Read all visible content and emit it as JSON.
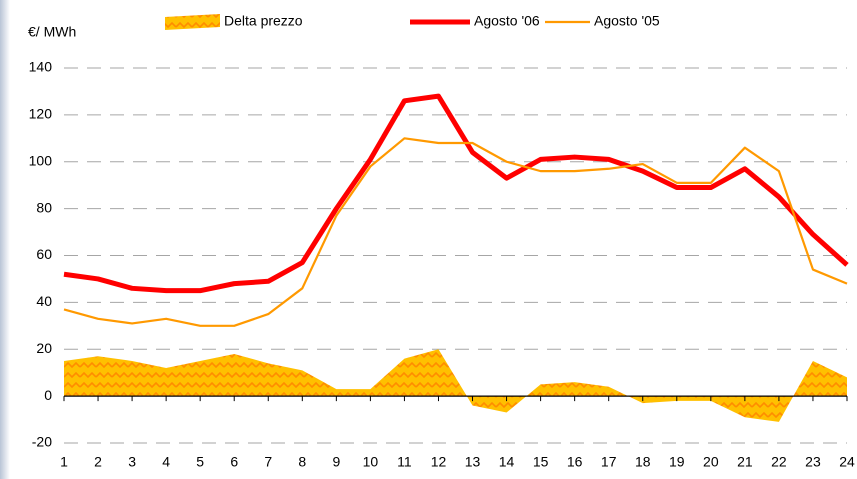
{
  "chart_data": {
    "type": "line",
    "y_label": "€/ MWh",
    "categories": [
      "1",
      "2",
      "3",
      "4",
      "5",
      "6",
      "7",
      "8",
      "9",
      "10",
      "11",
      "12",
      "13",
      "14",
      "15",
      "16",
      "17",
      "18",
      "19",
      "20",
      "21",
      "22",
      "23",
      "24"
    ],
    "series": [
      {
        "name": "Delta prezzo",
        "kind": "area",
        "color": "#ffc000",
        "hatch_color": "#ff8c00",
        "values": [
          15,
          17,
          15,
          12,
          15,
          18,
          14,
          11,
          3,
          3,
          16,
          20,
          -4,
          -7,
          5,
          6,
          4,
          -3,
          -2,
          -2,
          -9,
          -11,
          15,
          8
        ]
      },
      {
        "name": "Agosto '06",
        "kind": "line",
        "color": "#ff0000",
        "values": [
          52,
          50,
          46,
          45,
          45,
          48,
          49,
          57,
          80,
          101,
          126,
          128,
          104,
          93,
          101,
          102,
          101,
          96,
          89,
          89,
          97,
          85,
          69,
          56
        ]
      },
      {
        "name": "Agosto '05",
        "kind": "line",
        "color": "#ff9900",
        "values": [
          37,
          33,
          31,
          33,
          30,
          30,
          35,
          46,
          77,
          98,
          110,
          108,
          108,
          100,
          96,
          96,
          97,
          99,
          91,
          91,
          106,
          96,
          54,
          48
        ]
      }
    ],
    "ylim": [
      -20,
      140
    ],
    "yticks": [
      -20,
      0,
      20,
      40,
      60,
      80,
      100,
      120,
      140
    ],
    "grid": true,
    "legend": "top"
  }
}
